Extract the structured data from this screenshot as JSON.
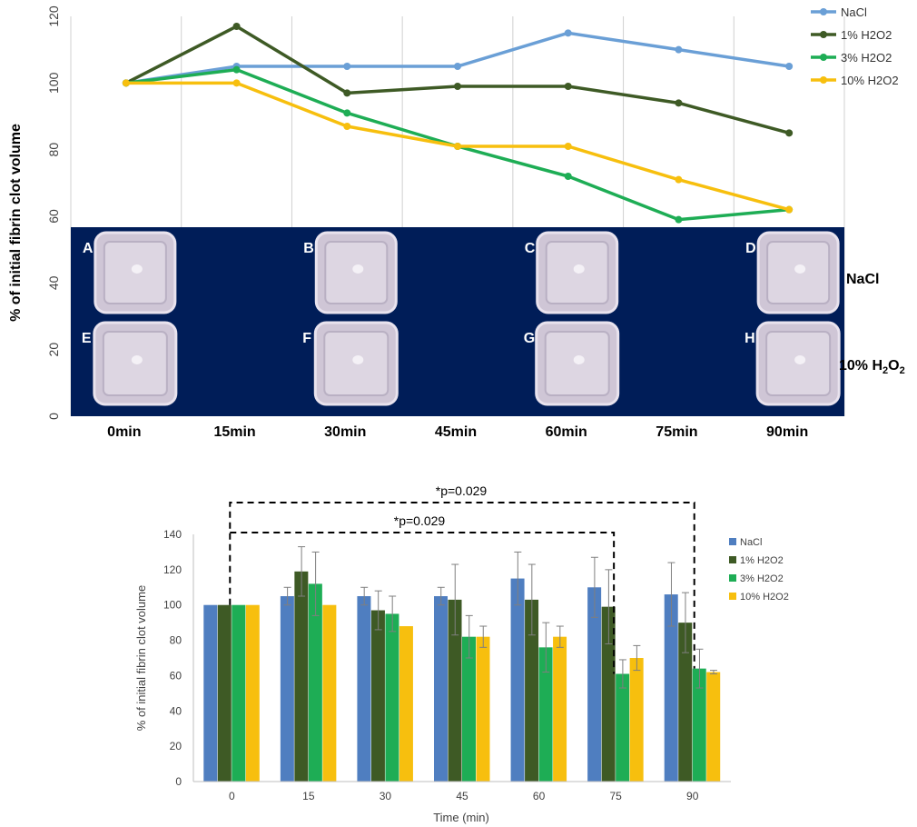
{
  "colors": {
    "NaCl": "#6a9fd6",
    "1% H2O2": "#3e5a25",
    "3% H2O2": "#1ead55",
    "10% H2O2": "#f7bf0e",
    "bar_nacl": "#4f7ec0",
    "photo_bg": "#001d58",
    "grid": "#d0d0d0",
    "axis_text": "#404040"
  },
  "top_panel": {
    "ylabel": "% of initial fibrin clot volume",
    "ytick_labels": [
      "0",
      "20",
      "40",
      "60",
      "80",
      "100",
      "120"
    ],
    "xtick_labels": [
      "0min",
      "15min",
      "30min",
      "45min",
      "60min",
      "75min",
      "90min"
    ],
    "photo_labels": [
      "A",
      "B",
      "C",
      "D",
      "E",
      "F",
      "G",
      "H"
    ],
    "row_label_nacl": "NaCl",
    "row_label_h2o2_main": "10% H",
    "row_label_h2o2_sub": "2",
    "row_label_h2o2_o": "O",
    "row_label_h2o2_sub2": "2"
  },
  "bottom_panel": {
    "ylabel": "% of initial fibrin clot volume",
    "xlabel": "Time (min)",
    "ytick_labels": [
      "0",
      "20",
      "40",
      "60",
      "80",
      "100",
      "120",
      "140"
    ],
    "annotation_outer": "*p=0.029",
    "annotation_inner": "*p=0.029"
  },
  "chart_data": [
    {
      "type": "line",
      "title": "",
      "xlabel": "",
      "ylabel": "% of initial fibrin clot volume",
      "ylim": [
        0,
        120
      ],
      "grid": true,
      "legend_position": "top-right",
      "x": [
        "0min",
        "15min",
        "30min",
        "45min",
        "60min",
        "75min",
        "90min"
      ],
      "series": [
        {
          "name": "NaCl",
          "values": [
            100,
            105,
            105,
            105,
            115,
            110,
            105
          ]
        },
        {
          "name": "1% H2O2",
          "values": [
            100,
            117,
            97,
            99,
            99,
            94,
            85
          ]
        },
        {
          "name": "3% H2O2",
          "values": [
            100,
            104,
            91,
            81,
            72,
            59,
            62
          ]
        },
        {
          "name": "10% H2O2",
          "values": [
            100,
            100,
            87,
            81,
            81,
            71,
            62
          ]
        }
      ]
    },
    {
      "type": "bar",
      "title": "",
      "xlabel": "Time (min)",
      "ylabel": "% of initial fibrin clot volume",
      "ylim": [
        0,
        140
      ],
      "grid": false,
      "legend_position": "right",
      "categories": [
        "0",
        "15",
        "30",
        "45",
        "60",
        "75",
        "90"
      ],
      "series": [
        {
          "name": "NaCl",
          "values": [
            100,
            105,
            105,
            105,
            115,
            110,
            106
          ],
          "errors": [
            0,
            5,
            5,
            5,
            15,
            17,
            18
          ]
        },
        {
          "name": "1% H2O2",
          "values": [
            100,
            119,
            97,
            103,
            103,
            99,
            90
          ],
          "errors": [
            0,
            14,
            11,
            20,
            20,
            21,
            17
          ]
        },
        {
          "name": "3% H2O2",
          "values": [
            100,
            112,
            95,
            82,
            76,
            61,
            64
          ],
          "errors": [
            0,
            18,
            10,
            12,
            14,
            8,
            11
          ]
        },
        {
          "name": "10% H2O2",
          "values": [
            100,
            100,
            88,
            82,
            82,
            70,
            62
          ],
          "errors": [
            0,
            0,
            0,
            6,
            6,
            7,
            1
          ]
        }
      ],
      "annotations": [
        {
          "text": "*p=0.029",
          "from": "0",
          "to": "90"
        },
        {
          "text": "*p=0.029",
          "from": "0",
          "to": "75"
        }
      ]
    }
  ]
}
